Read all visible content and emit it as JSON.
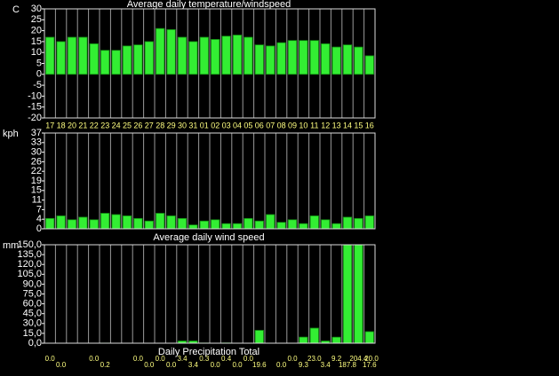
{
  "chart_data": [
    {
      "type": "bar",
      "title": "Average daily temperature/windspeed",
      "y_label": "C",
      "categories": [
        "17",
        "18",
        "20",
        "21",
        "22",
        "23",
        "24",
        "25",
        "26",
        "27",
        "28",
        "29",
        "30",
        "31",
        "01",
        "02",
        "03",
        "04",
        "05",
        "06",
        "07",
        "08",
        "09",
        "10",
        "11",
        "12",
        "13",
        "14",
        "15",
        "16"
      ],
      "values": [
        17,
        15,
        17,
        17,
        14,
        11,
        11,
        13,
        13.5,
        15,
        21,
        20.5,
        17,
        15,
        17,
        16,
        17.5,
        18,
        17,
        13.5,
        13,
        14.5,
        15.5,
        15.5,
        15.5,
        14,
        12.5,
        13.5,
        12.5,
        8.5
      ],
      "color": "#33ee33",
      "ylim": [
        -20,
        30
      ],
      "yticks": [
        -20,
        -15,
        -10,
        -5,
        0,
        5,
        10,
        15,
        20,
        25,
        30
      ]
    },
    {
      "type": "bar",
      "title": "Average daily wind speed",
      "y_label": "kph",
      "values": [
        4,
        5,
        3.5,
        4.5,
        3.5,
        6,
        5.5,
        5,
        4,
        3,
        6,
        5,
        4,
        1.5,
        3,
        3.5,
        2,
        2,
        4,
        3,
        5.5,
        2.5,
        3.5,
        2,
        5,
        3.5,
        2,
        4.5,
        4,
        5
      ],
      "color": "#33ee33",
      "ylim": [
        0,
        37
      ],
      "yticks": [
        0,
        {
          "value": 3.7,
          "label": "4"
        },
        {
          "value": 7.4,
          "label": "7"
        },
        {
          "value": 11.1,
          "label": "11"
        },
        {
          "value": 14.8,
          "label": "15"
        },
        {
          "value": 18.5,
          "label": "19"
        },
        {
          "value": 22.2,
          "label": "22"
        },
        {
          "value": 25.9,
          "label": "26"
        },
        {
          "value": 29.6,
          "label": "30"
        },
        {
          "value": 33.3,
          "label": "33"
        },
        37
      ]
    },
    {
      "type": "bar",
      "title": "Daily Precipitation Total",
      "y_label": "mm",
      "values": [
        0,
        0,
        0,
        0,
        0,
        0.2,
        0,
        0,
        0,
        0,
        0,
        0,
        3.4,
        3.4,
        0.3,
        0,
        0.4,
        0,
        0,
        19.6,
        0,
        0,
        0,
        9.3,
        23,
        3.4,
        9.2,
        187.8,
        204.4,
        17.6
      ],
      "value_labels": [
        "0.0",
        "0.0",
        null,
        null,
        "0.0",
        "0.2",
        null,
        null,
        "0.0",
        "0.0",
        "0.0",
        "0.0",
        "3.4",
        "3.4",
        "0.3",
        "0.0",
        "0.4",
        "0.0",
        "0.0",
        "19.6",
        null,
        "0.0",
        "0.0",
        "9.3",
        "23.0",
        "3.4",
        "9.2",
        "187.8",
        "204.4",
        "17.6"
      ],
      "annotations": [
        "20.0"
      ],
      "color": "#33ee33",
      "ylim": [
        0,
        150
      ],
      "yticks": [
        {
          "value": 0,
          "label": "0,0"
        },
        {
          "value": 15,
          "label": "15,0"
        },
        {
          "value": 30,
          "label": "30,0"
        },
        {
          "value": 45,
          "label": "45,0"
        },
        {
          "value": 60,
          "label": "60,0"
        },
        {
          "value": 75,
          "label": "75,0"
        },
        {
          "value": 90,
          "label": "90,0"
        },
        {
          "value": 105,
          "label": "105,0"
        },
        {
          "value": 120,
          "label": "120,0"
        },
        {
          "value": 135,
          "label": "135,0"
        },
        {
          "value": 150,
          "label": "150,0"
        }
      ]
    }
  ]
}
